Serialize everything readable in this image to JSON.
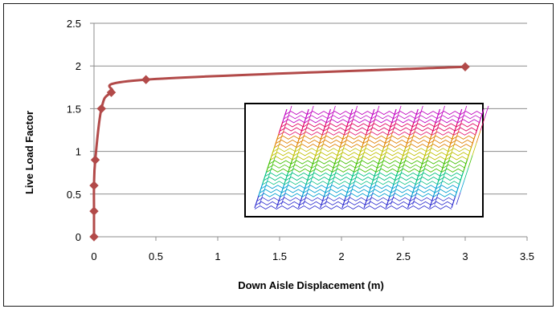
{
  "chart_data": {
    "type": "line",
    "title": "",
    "xlabel": "Down Aisle Displacement (m)",
    "ylabel": "Live Load Factor",
    "xlim": [
      0,
      3.5
    ],
    "ylim": [
      0,
      2.5
    ],
    "x_ticks": [
      "0",
      "0.5",
      "1",
      "1.5",
      "2",
      "2.5",
      "3",
      "3.5"
    ],
    "y_ticks": [
      "0",
      "0.5",
      "1",
      "1.5",
      "2",
      "2.5"
    ],
    "grid": "horizontal",
    "legend": "none",
    "series": [
      {
        "color": "#b24a49",
        "marker": "diamond",
        "x": [
          0,
          0,
          0,
          0.01,
          0.06,
          0.14,
          0.42,
          3.0
        ],
        "y": [
          0,
          0.3,
          0.6,
          0.9,
          1.5,
          1.69,
          1.84,
          1.99
        ]
      }
    ]
  },
  "inset": {
    "description_colors": [
      "#3030d0",
      "#00a0d0",
      "#00c080",
      "#40c000",
      "#c0c000",
      "#e08000",
      "#e00060",
      "#c000c0"
    ]
  }
}
